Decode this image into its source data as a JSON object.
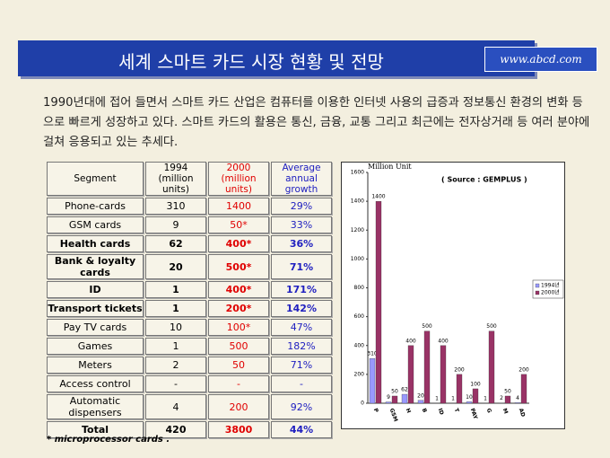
{
  "header": {
    "title": "세계 스마트 카드 시장 현황 및 전망",
    "url": "www.abcd.com"
  },
  "intro": "1990년대에 접어 들면서 스마트 카드 산업은 컴퓨터를 이용한 인터넷 사용의 급증과 정보통신 환경의 변화 등으로 빠르게 성장하고 있다. 스마트 카드의 활용은 통신, 금융, 교통 그리고 최근에는 전자상거래 등 여러 분야에 걸쳐 응용되고 있는 추세다.",
  "table": {
    "columns": [
      [
        "Segment"
      ],
      [
        "1994",
        "(million units)"
      ],
      [
        "2000",
        "(million units)"
      ],
      [
        "Average",
        "annual growth"
      ]
    ],
    "rows": [
      [
        "Phone-cards",
        "310",
        "1400",
        "29%"
      ],
      [
        "GSM cards",
        "9",
        "50*",
        "33%"
      ],
      [
        "Health cards",
        "62",
        "400*",
        "36%"
      ],
      [
        "Bank & loyalty cards",
        "20",
        "500*",
        "71%"
      ],
      [
        "ID",
        "1",
        "400*",
        "171%"
      ],
      [
        "Transport tickets",
        "1",
        "200*",
        "142%"
      ],
      [
        "Pay TV cards",
        "10",
        "100*",
        "47%"
      ],
      [
        "Games",
        "1",
        "500",
        "182%"
      ],
      [
        "Meters",
        "2",
        "50",
        "71%"
      ],
      [
        "Access control",
        "-",
        "-",
        "-"
      ],
      [
        "Automatic dispensers",
        "4",
        "200",
        "92%"
      ],
      [
        "Total",
        "420",
        "3800",
        "44%"
      ]
    ]
  },
  "footnote": "* microprocessor cards .",
  "chart_data": {
    "type": "bar",
    "unit": "Million Unit",
    "source": "( Source : GEMPLUS )",
    "categories": [
      "P",
      "GSM",
      "H",
      "B",
      "ID",
      "T",
      "PAY",
      "G",
      "M",
      "AD"
    ],
    "series": [
      {
        "name": "1994년",
        "color": "#9999ff",
        "values": [
          310,
          9,
          62,
          20,
          1,
          1,
          10,
          1,
          2,
          4
        ]
      },
      {
        "name": "2000년",
        "color": "#993366",
        "values": [
          1400,
          50,
          400,
          500,
          400,
          200,
          100,
          500,
          50,
          200
        ]
      }
    ],
    "ylim": [
      0,
      1600
    ],
    "yticks": [
      0,
      200,
      400,
      600,
      800,
      1000,
      1200,
      1400,
      1600
    ],
    "legend": "right"
  }
}
